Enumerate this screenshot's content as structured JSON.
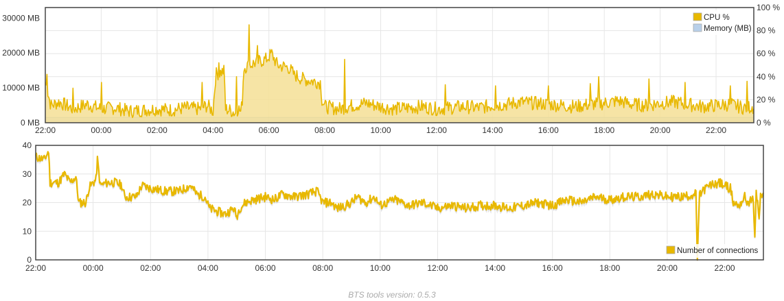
{
  "footer": {
    "version_text": "BTS tools version: 0.5.3"
  },
  "colors": {
    "cpu": "#e8b800",
    "cpu_fill": "#f5df95",
    "memory": "#b8d0ea",
    "connections": "#e8b800",
    "grid": "#e6e6e6",
    "border": "#444444"
  },
  "chart_data": [
    {
      "type": "area",
      "x_ticks": [
        "22:00",
        "00:00",
        "02:00",
        "04:00",
        "06:00",
        "08:00",
        "10:00",
        "12:00",
        "14:00",
        "16:00",
        "18:00",
        "20:00",
        "22:00"
      ],
      "x_range_hours": [
        22,
        47.35
      ],
      "y_left_ticks": [
        "0 MB",
        "10000 MB",
        "20000 MB",
        "30000 MB"
      ],
      "y_left_lim": [
        0,
        33000
      ],
      "y_right_ticks": [
        "0 %",
        "20 %",
        "40 %",
        "60 %",
        "80 %",
        "100 %"
      ],
      "y_right_lim": [
        0,
        100
      ],
      "grid": true,
      "legend_position": "top-right",
      "series": [
        {
          "name": "CPU %",
          "axis": "right",
          "values": [
            [
              22.0,
              35
            ],
            [
              22.2,
              15
            ],
            [
              22.5,
              18
            ],
            [
              23.0,
              12
            ],
            [
              23.5,
              16
            ],
            [
              24.0,
              12
            ],
            [
              24.5,
              13
            ],
            [
              25.0,
              10
            ],
            [
              25.5,
              11
            ],
            [
              26.0,
              12
            ],
            [
              26.5,
              11
            ],
            [
              27.0,
              13
            ],
            [
              27.5,
              12
            ],
            [
              27.8,
              15
            ],
            [
              28.0,
              10
            ],
            [
              28.1,
              42
            ],
            [
              28.4,
              45
            ],
            [
              28.45,
              12
            ],
            [
              28.7,
              10
            ],
            [
              28.8,
              8
            ],
            [
              28.9,
              13
            ],
            [
              29.0,
              9
            ],
            [
              29.05,
              20
            ],
            [
              29.1,
              48
            ],
            [
              29.5,
              52
            ],
            [
              29.9,
              55
            ],
            [
              30.1,
              60
            ],
            [
              30.3,
              50
            ],
            [
              30.7,
              48
            ],
            [
              30.9,
              42
            ],
            [
              31.2,
              38
            ],
            [
              31.6,
              36
            ],
            [
              31.85,
              35
            ],
            [
              31.9,
              20
            ],
            [
              32.0,
              14
            ],
            [
              32.5,
              12
            ],
            [
              33.0,
              15
            ],
            [
              33.5,
              17
            ],
            [
              34.0,
              14
            ],
            [
              34.5,
              12
            ],
            [
              35.0,
              13
            ],
            [
              35.5,
              14
            ],
            [
              36.0,
              12
            ],
            [
              36.5,
              13
            ],
            [
              37.0,
              14
            ],
            [
              37.5,
              13
            ],
            [
              38.0,
              15
            ],
            [
              38.5,
              16
            ],
            [
              39.0,
              18
            ],
            [
              39.5,
              17
            ],
            [
              40.0,
              16
            ],
            [
              40.5,
              15
            ],
            [
              41.0,
              14
            ],
            [
              41.5,
              16
            ],
            [
              42.0,
              17
            ],
            [
              42.5,
              19
            ],
            [
              43.0,
              16
            ],
            [
              43.5,
              15
            ],
            [
              44.0,
              17
            ],
            [
              44.5,
              18
            ],
            [
              45.0,
              16
            ],
            [
              45.5,
              14
            ],
            [
              46.0,
              15
            ],
            [
              46.5,
              16
            ],
            [
              47.0,
              13
            ],
            [
              47.35,
              14
            ]
          ],
          "spikes": [
            [
              22.05,
              42
            ],
            [
              23.0,
              30
            ],
            [
              24.0,
              35
            ],
            [
              27.6,
              35
            ],
            [
              28.2,
              52
            ],
            [
              28.85,
              40
            ],
            [
              29.3,
              85
            ],
            [
              29.6,
              67
            ],
            [
              30.9,
              45
            ],
            [
              32.7,
              55
            ],
            [
              36.3,
              33
            ],
            [
              38.1,
              32
            ],
            [
              40.0,
              32
            ],
            [
              41.5,
              34
            ],
            [
              41.8,
              40
            ],
            [
              43.6,
              38
            ],
            [
              44.9,
              35
            ],
            [
              46.5,
              32
            ],
            [
              47.1,
              36
            ]
          ]
        },
        {
          "name": "Memory (MB)",
          "axis": "left",
          "values": [
            [
              22.0,
              1500
            ],
            [
              47.35,
              1500
            ]
          ]
        }
      ]
    },
    {
      "type": "line",
      "x_ticks": [
        "22:00",
        "00:00",
        "02:00",
        "04:00",
        "06:00",
        "08:00",
        "10:00",
        "12:00",
        "14:00",
        "16:00",
        "18:00",
        "20:00",
        "22:00"
      ],
      "x_range_hours": [
        22,
        47.35
      ],
      "y_ticks": [
        "0",
        "10",
        "20",
        "30",
        "40"
      ],
      "ylim": [
        0,
        40
      ],
      "grid": true,
      "legend_position": "bottom-right",
      "series": [
        {
          "name": "Number of connections",
          "values": [
            [
              22.0,
              36
            ],
            [
              22.3,
              35
            ],
            [
              22.45,
              38
            ],
            [
              22.5,
              27
            ],
            [
              22.8,
              27
            ],
            [
              23.0,
              30
            ],
            [
              23.2,
              27
            ],
            [
              23.4,
              29
            ],
            [
              23.5,
              20
            ],
            [
              23.75,
              20
            ],
            [
              23.85,
              25
            ],
            [
              24.0,
              27
            ],
            [
              24.1,
              28
            ],
            [
              24.15,
              35
            ],
            [
              24.25,
              26
            ],
            [
              24.5,
              27
            ],
            [
              24.8,
              27
            ],
            [
              25.0,
              26
            ],
            [
              25.1,
              22
            ],
            [
              25.5,
              22
            ],
            [
              25.7,
              26
            ],
            [
              26.0,
              25
            ],
            [
              26.5,
              24
            ],
            [
              27.0,
              24
            ],
            [
              27.4,
              26
            ],
            [
              27.6,
              23
            ],
            [
              27.9,
              22
            ],
            [
              28.05,
              18
            ],
            [
              28.3,
              17
            ],
            [
              28.6,
              16
            ],
            [
              28.9,
              18
            ],
            [
              29.0,
              15
            ],
            [
              29.1,
              18
            ],
            [
              29.3,
              20
            ],
            [
              29.6,
              21
            ],
            [
              30.0,
              22
            ],
            [
              30.3,
              21
            ],
            [
              30.6,
              23
            ],
            [
              31.0,
              22
            ],
            [
              31.5,
              23
            ],
            [
              31.8,
              24
            ],
            [
              32.0,
              20
            ],
            [
              32.3,
              20
            ],
            [
              32.5,
              18
            ],
            [
              32.8,
              19
            ],
            [
              33.0,
              20
            ],
            [
              33.2,
              22
            ],
            [
              33.5,
              20
            ],
            [
              33.8,
              22
            ],
            [
              34.0,
              19
            ],
            [
              34.5,
              21
            ],
            [
              35.0,
              19
            ],
            [
              35.5,
              20
            ],
            [
              36.0,
              18
            ],
            [
              36.5,
              19
            ],
            [
              37.0,
              18
            ],
            [
              37.5,
              19
            ],
            [
              38.0,
              19
            ],
            [
              38.5,
              18
            ],
            [
              39.0,
              19
            ],
            [
              39.5,
              20
            ],
            [
              40.0,
              19
            ],
            [
              40.5,
              21
            ],
            [
              41.0,
              20
            ],
            [
              41.5,
              22
            ],
            [
              42.0,
              21
            ],
            [
              42.5,
              22
            ],
            [
              43.0,
              22
            ],
            [
              43.5,
              23
            ],
            [
              44.0,
              22
            ],
            [
              44.5,
              22
            ],
            [
              45.0,
              23
            ],
            [
              45.05,
              0
            ],
            [
              45.12,
              22
            ],
            [
              45.2,
              24
            ],
            [
              45.5,
              26
            ],
            [
              45.8,
              27
            ],
            [
              46.0,
              26
            ],
            [
              46.2,
              25
            ],
            [
              46.3,
              20
            ],
            [
              46.5,
              19
            ],
            [
              46.7,
              22
            ],
            [
              46.8,
              20
            ],
            [
              47.0,
              21
            ],
            [
              47.05,
              8
            ],
            [
              47.1,
              24
            ],
            [
              47.2,
              15
            ],
            [
              47.25,
              22
            ],
            [
              47.35,
              23
            ]
          ]
        }
      ]
    }
  ]
}
